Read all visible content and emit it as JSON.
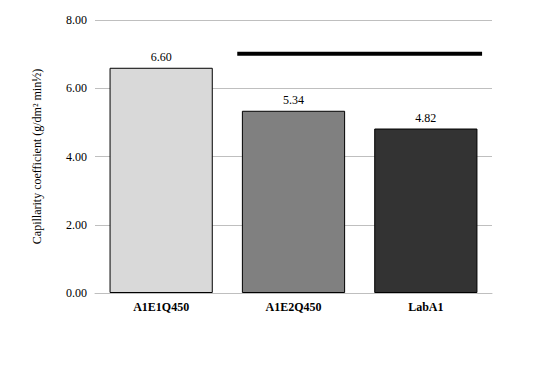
{
  "chart_data": {
    "type": "bar",
    "y_label": "Capillarity coefficient (g/dm² min½)",
    "categories": [
      "A1E1Q450",
      "A1E2Q450",
      "LabA1"
    ],
    "values": [
      6.6,
      5.34,
      4.82
    ],
    "value_labels": [
      "6.60",
      "5.34",
      "4.82"
    ],
    "colors": [
      "#d9d9d9",
      "#808080",
      "#333333"
    ],
    "data_labels": true,
    "ylim": [
      0,
      8
    ],
    "yticks": [
      {
        "value": 0,
        "label": "0.00"
      },
      {
        "value": 2,
        "label": "2.00"
      },
      {
        "value": 4,
        "label": "4.00"
      },
      {
        "value": 6,
        "label": "6.00"
      },
      {
        "value": 8,
        "label": "8.00"
      }
    ],
    "grid": true
  }
}
